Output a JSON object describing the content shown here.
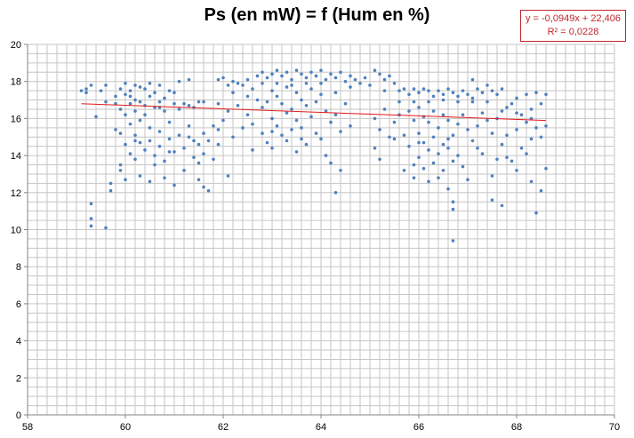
{
  "chart_data": {
    "type": "scatter",
    "title": "Ps (en mW) = f (Hum en %)",
    "xlim": [
      58,
      70
    ],
    "ylim": [
      0,
      20
    ],
    "x_ticks": [
      "58",
      "60",
      "62",
      "64",
      "66",
      "68",
      "70"
    ],
    "y_ticks": [
      "0",
      "2",
      "4",
      "6",
      "8",
      "10",
      "12",
      "14",
      "16",
      "18",
      "20"
    ],
    "grid": true,
    "point_color": "#4f81bd",
    "trendline": {
      "color": "#e41a1c",
      "slope": -0.0949,
      "intercept": 22.406,
      "equation": "y = -0,0949x + 22,406",
      "r2": "R² = 0,0228"
    },
    "points": [
      [
        59.1,
        17.5
      ],
      [
        59.2,
        17.6
      ],
      [
        59.3,
        17.8
      ],
      [
        59.2,
        17.4
      ],
      [
        59.4,
        16.1
      ],
      [
        59.3,
        11.4
      ],
      [
        59.3,
        10.6
      ],
      [
        59.3,
        10.2
      ],
      [
        59.5,
        17.5
      ],
      [
        59.6,
        17.8
      ],
      [
        59.6,
        16.9
      ],
      [
        59.7,
        12.5
      ],
      [
        59.7,
        12.1
      ],
      [
        59.6,
        10.1
      ],
      [
        59.8,
        17.2
      ],
      [
        59.8,
        15.4
      ],
      [
        59.9,
        17.6
      ],
      [
        59.9,
        16.5
      ],
      [
        59.9,
        15.2
      ],
      [
        59.9,
        13.5
      ],
      [
        59.9,
        13.2
      ],
      [
        60.0,
        17.9
      ],
      [
        60.0,
        17.3
      ],
      [
        60.0,
        16.2
      ],
      [
        60.0,
        14.6
      ],
      [
        60.0,
        12.7
      ],
      [
        60.1,
        17.5
      ],
      [
        60.1,
        16.8
      ],
      [
        60.1,
        15.7
      ],
      [
        60.1,
        14.1
      ],
      [
        60.2,
        17.8
      ],
      [
        60.2,
        17.0
      ],
      [
        60.2,
        16.4
      ],
      [
        60.2,
        15.1
      ],
      [
        60.2,
        13.8
      ],
      [
        60.3,
        17.7
      ],
      [
        60.3,
        16.9
      ],
      [
        60.3,
        15.9
      ],
      [
        60.3,
        14.7
      ],
      [
        60.3,
        12.9
      ],
      [
        60.4,
        17.6
      ],
      [
        60.4,
        16.7
      ],
      [
        60.4,
        14.3
      ],
      [
        60.5,
        17.9
      ],
      [
        60.5,
        17.2
      ],
      [
        60.5,
        15.5
      ],
      [
        60.5,
        14.8
      ],
      [
        60.5,
        12.6
      ],
      [
        60.6,
        17.4
      ],
      [
        60.6,
        16.6
      ],
      [
        60.6,
        14.0
      ],
      [
        60.6,
        13.5
      ],
      [
        60.7,
        17.8
      ],
      [
        60.7,
        16.9
      ],
      [
        60.7,
        15.3
      ],
      [
        60.7,
        14.5
      ],
      [
        60.8,
        17.1
      ],
      [
        60.8,
        16.4
      ],
      [
        60.8,
        13.7
      ],
      [
        60.8,
        12.8
      ],
      [
        60.9,
        17.5
      ],
      [
        60.9,
        15.8
      ],
      [
        60.9,
        14.9
      ],
      [
        61.0,
        16.8
      ],
      [
        61.0,
        14.2
      ],
      [
        61.0,
        12.4
      ],
      [
        61.1,
        18.0
      ],
      [
        61.1,
        16.5
      ],
      [
        61.1,
        15.1
      ],
      [
        61.2,
        16.8
      ],
      [
        61.2,
        14.4
      ],
      [
        61.2,
        13.2
      ],
      [
        61.3,
        18.1
      ],
      [
        61.3,
        16.7
      ],
      [
        61.3,
        15.0
      ],
      [
        61.4,
        16.6
      ],
      [
        61.4,
        14.8
      ],
      [
        61.4,
        13.9
      ],
      [
        61.5,
        16.9
      ],
      [
        61.5,
        14.6
      ],
      [
        61.5,
        12.7
      ],
      [
        61.6,
        15.2
      ],
      [
        61.6,
        14.1
      ],
      [
        61.6,
        12.3
      ],
      [
        61.7,
        14.8
      ],
      [
        61.7,
        12.1
      ],
      [
        61.8,
        15.6
      ],
      [
        61.8,
        13.8
      ],
      [
        61.9,
        18.1
      ],
      [
        61.9,
        16.8
      ],
      [
        61.9,
        14.6
      ],
      [
        62.0,
        18.2
      ],
      [
        62.0,
        15.9
      ],
      [
        62.1,
        17.8
      ],
      [
        62.1,
        16.4
      ],
      [
        62.1,
        12.9
      ],
      [
        62.2,
        18.0
      ],
      [
        62.2,
        15.0
      ],
      [
        62.3,
        17.9
      ],
      [
        62.3,
        16.7
      ],
      [
        62.4,
        17.8
      ],
      [
        62.4,
        15.5
      ],
      [
        62.5,
        18.1
      ],
      [
        62.5,
        16.2
      ],
      [
        62.6,
        17.6
      ],
      [
        62.6,
        15.7
      ],
      [
        62.6,
        14.3
      ],
      [
        62.7,
        18.3
      ],
      [
        62.7,
        17.0
      ],
      [
        62.8,
        18.5
      ],
      [
        62.8,
        16.6
      ],
      [
        62.8,
        15.2
      ],
      [
        62.9,
        18.2
      ],
      [
        62.9,
        16.9
      ],
      [
        62.9,
        14.7
      ],
      [
        63.0,
        18.4
      ],
      [
        63.0,
        17.5
      ],
      [
        63.0,
        16.0
      ],
      [
        63.0,
        14.4
      ],
      [
        63.1,
        18.6
      ],
      [
        63.1,
        17.2
      ],
      [
        63.1,
        15.6
      ],
      [
        63.2,
        18.3
      ],
      [
        63.2,
        16.8
      ],
      [
        63.2,
        15.1
      ],
      [
        63.3,
        18.5
      ],
      [
        63.3,
        17.7
      ],
      [
        63.3,
        16.3
      ],
      [
        63.3,
        14.8
      ],
      [
        63.4,
        18.1
      ],
      [
        63.4,
        16.5
      ],
      [
        63.4,
        15.4
      ],
      [
        63.5,
        18.6
      ],
      [
        63.5,
        17.4
      ],
      [
        63.5,
        15.9
      ],
      [
        63.5,
        14.2
      ],
      [
        63.6,
        18.4
      ],
      [
        63.6,
        17.0
      ],
      [
        63.6,
        15.5
      ],
      [
        63.7,
        18.2
      ],
      [
        63.7,
        16.7
      ],
      [
        63.7,
        14.6
      ],
      [
        63.8,
        18.5
      ],
      [
        63.8,
        17.6
      ],
      [
        63.8,
        16.1
      ],
      [
        63.9,
        18.3
      ],
      [
        63.9,
        16.9
      ],
      [
        63.9,
        15.2
      ],
      [
        64.0,
        18.6
      ],
      [
        64.0,
        17.3
      ],
      [
        64.0,
        14.9
      ],
      [
        64.1,
        18.1
      ],
      [
        64.1,
        16.4
      ],
      [
        64.2,
        18.4
      ],
      [
        64.2,
        15.8
      ],
      [
        64.2,
        13.6
      ],
      [
        64.3,
        18.2
      ],
      [
        64.3,
        16.2
      ],
      [
        64.3,
        12.0
      ],
      [
        64.4,
        18.5
      ],
      [
        64.4,
        15.3
      ],
      [
        64.4,
        13.2
      ],
      [
        64.5,
        18.0
      ],
      [
        64.5,
        16.8
      ],
      [
        64.6,
        18.3
      ],
      [
        64.6,
        15.6
      ],
      [
        64.7,
        18.1
      ],
      [
        64.8,
        17.9
      ],
      [
        64.9,
        18.2
      ],
      [
        65.0,
        17.8
      ],
      [
        65.1,
        18.6
      ],
      [
        65.1,
        16.0
      ],
      [
        65.1,
        14.4
      ],
      [
        65.2,
        18.4
      ],
      [
        65.2,
        15.4
      ],
      [
        65.2,
        13.8
      ],
      [
        65.3,
        18.1
      ],
      [
        65.3,
        16.5
      ],
      [
        65.4,
        18.3
      ],
      [
        65.4,
        15.0
      ],
      [
        65.5,
        17.9
      ],
      [
        65.5,
        15.8
      ],
      [
        65.6,
        17.5
      ],
      [
        65.6,
        16.2
      ],
      [
        65.7,
        17.6
      ],
      [
        65.7,
        15.1
      ],
      [
        65.7,
        13.2
      ],
      [
        65.8,
        17.3
      ],
      [
        65.8,
        16.4
      ],
      [
        65.8,
        14.5
      ],
      [
        65.9,
        17.6
      ],
      [
        65.9,
        15.9
      ],
      [
        65.9,
        13.5
      ],
      [
        65.9,
        12.8
      ],
      [
        66.0,
        17.4
      ],
      [
        66.0,
        16.6
      ],
      [
        66.0,
        15.2
      ],
      [
        66.0,
        13.9
      ],
      [
        66.1,
        17.6
      ],
      [
        66.1,
        16.1
      ],
      [
        66.1,
        14.7
      ],
      [
        66.1,
        13.3
      ],
      [
        66.2,
        17.5
      ],
      [
        66.2,
        15.8
      ],
      [
        66.2,
        14.3
      ],
      [
        66.2,
        12.6
      ],
      [
        66.3,
        17.2
      ],
      [
        66.3,
        16.4
      ],
      [
        66.3,
        15.0
      ],
      [
        66.3,
        13.6
      ],
      [
        66.4,
        17.5
      ],
      [
        66.4,
        15.5
      ],
      [
        66.4,
        14.1
      ],
      [
        66.4,
        12.8
      ],
      [
        66.5,
        17.3
      ],
      [
        66.5,
        16.2
      ],
      [
        66.5,
        14.6
      ],
      [
        66.5,
        13.2
      ],
      [
        66.6,
        17.6
      ],
      [
        66.6,
        15.9
      ],
      [
        66.6,
        14.4
      ],
      [
        66.6,
        12.2
      ],
      [
        66.7,
        17.4
      ],
      [
        66.7,
        15.1
      ],
      [
        66.7,
        13.7
      ],
      [
        66.7,
        11.5
      ],
      [
        66.7,
        11.1
      ],
      [
        66.7,
        9.4
      ],
      [
        66.8,
        17.2
      ],
      [
        66.8,
        15.7
      ],
      [
        66.8,
        14.0
      ],
      [
        66.9,
        17.5
      ],
      [
        66.9,
        16.2
      ],
      [
        66.9,
        13.4
      ],
      [
        67.0,
        17.3
      ],
      [
        67.0,
        15.4
      ],
      [
        67.0,
        12.7
      ],
      [
        67.1,
        18.1
      ],
      [
        67.1,
        16.9
      ],
      [
        67.1,
        14.8
      ],
      [
        67.2,
        17.6
      ],
      [
        67.2,
        15.6
      ],
      [
        67.3,
        17.4
      ],
      [
        67.3,
        16.3
      ],
      [
        67.3,
        14.1
      ],
      [
        67.4,
        17.8
      ],
      [
        67.4,
        15.9
      ],
      [
        67.5,
        17.5
      ],
      [
        67.5,
        15.2
      ],
      [
        67.5,
        12.9
      ],
      [
        67.5,
        11.6
      ],
      [
        67.6,
        17.3
      ],
      [
        67.6,
        16.0
      ],
      [
        67.6,
        13.8
      ],
      [
        67.7,
        17.6
      ],
      [
        67.7,
        14.6
      ],
      [
        67.7,
        11.3
      ],
      [
        67.8,
        16.6
      ],
      [
        67.8,
        15.1
      ],
      [
        67.9,
        16.8
      ],
      [
        67.9,
        13.7
      ],
      [
        68.0,
        17.1
      ],
      [
        68.0,
        15.4
      ],
      [
        68.0,
        13.2
      ],
      [
        68.1,
        16.2
      ],
      [
        68.1,
        14.4
      ],
      [
        68.2,
        17.3
      ],
      [
        68.2,
        15.8
      ],
      [
        68.3,
        16.5
      ],
      [
        68.3,
        14.9
      ],
      [
        68.3,
        12.6
      ],
      [
        68.4,
        17.4
      ],
      [
        68.4,
        15.5
      ],
      [
        68.4,
        10.9
      ],
      [
        68.5,
        16.8
      ],
      [
        68.5,
        15.0
      ],
      [
        68.5,
        12.1
      ],
      [
        68.6,
        17.3
      ],
      [
        68.6,
        15.6
      ],
      [
        68.6,
        13.3
      ],
      [
        59.8,
        16.8
      ],
      [
        60.1,
        17.2
      ],
      [
        60.4,
        16.2
      ],
      [
        60.7,
        16.6
      ],
      [
        61.0,
        17.4
      ],
      [
        61.3,
        15.6
      ],
      [
        61.6,
        16.9
      ],
      [
        61.9,
        15.4
      ],
      [
        62.2,
        17.4
      ],
      [
        62.5,
        17.2
      ],
      [
        62.8,
        17.9
      ],
      [
        63.1,
        17.9
      ],
      [
        63.4,
        17.8
      ],
      [
        63.7,
        17.9
      ],
      [
        64.0,
        17.9
      ],
      [
        64.3,
        17.4
      ],
      [
        64.6,
        17.7
      ],
      [
        65.3,
        17.5
      ],
      [
        65.6,
        16.9
      ],
      [
        65.9,
        16.9
      ],
      [
        66.2,
        16.9
      ],
      [
        66.5,
        17.0
      ],
      [
        66.8,
        16.9
      ],
      [
        67.1,
        17.1
      ],
      [
        67.4,
        16.9
      ],
      [
        67.7,
        16.4
      ],
      [
        68.0,
        16.3
      ],
      [
        68.3,
        16.0
      ],
      [
        60.2,
        14.8
      ],
      [
        60.9,
        14.2
      ],
      [
        61.5,
        13.6
      ],
      [
        63.0,
        15.3
      ],
      [
        63.6,
        14.9
      ],
      [
        64.1,
        14.0
      ],
      [
        65.5,
        14.9
      ],
      [
        66.0,
        14.7
      ],
      [
        66.6,
        14.9
      ],
      [
        67.2,
        14.4
      ],
      [
        67.8,
        13.9
      ],
      [
        68.2,
        14.1
      ]
    ]
  }
}
